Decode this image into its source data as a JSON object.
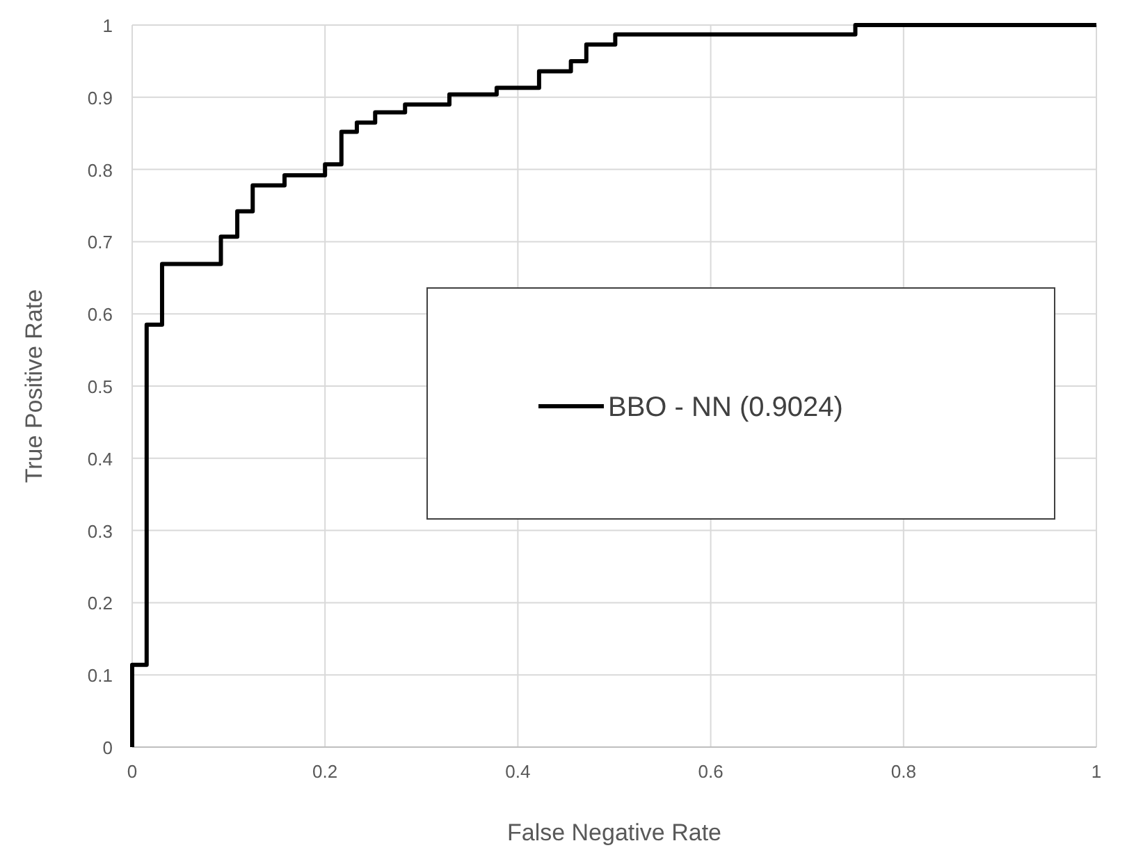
{
  "chart_data": {
    "type": "step",
    "xlabel": "False Negative Rate",
    "ylabel": "True Positive Rate",
    "x": [
      0,
      0,
      0.015,
      0.031,
      0.092,
      0.109,
      0.125,
      0.158,
      0.2,
      0.217,
      0.233,
      0.252,
      0.283,
      0.329,
      0.378,
      0.422,
      0.455,
      0.471,
      0.501,
      0.75,
      1
    ],
    "series": [
      {
        "name": "BBO - NN (0.9024)",
        "color": "#000000",
        "values": [
          0,
          0.114,
          0.585,
          0.669,
          0.707,
          0.742,
          0.778,
          0.792,
          0.807,
          0.852,
          0.865,
          0.879,
          0.89,
          0.904,
          0.913,
          0.936,
          0.95,
          0.973,
          0.987,
          1,
          1
        ]
      }
    ],
    "xlim": [
      0,
      1
    ],
    "ylim": [
      0,
      1
    ],
    "xticks": [
      0,
      0.2,
      0.4,
      0.6,
      0.8,
      1
    ],
    "yticks": [
      0,
      0.1,
      0.2,
      0.3,
      0.4,
      0.5,
      0.6,
      0.7,
      0.8,
      0.9,
      1
    ],
    "grid": true,
    "legend": "right",
    "marker": "none",
    "line_style": "solid"
  }
}
